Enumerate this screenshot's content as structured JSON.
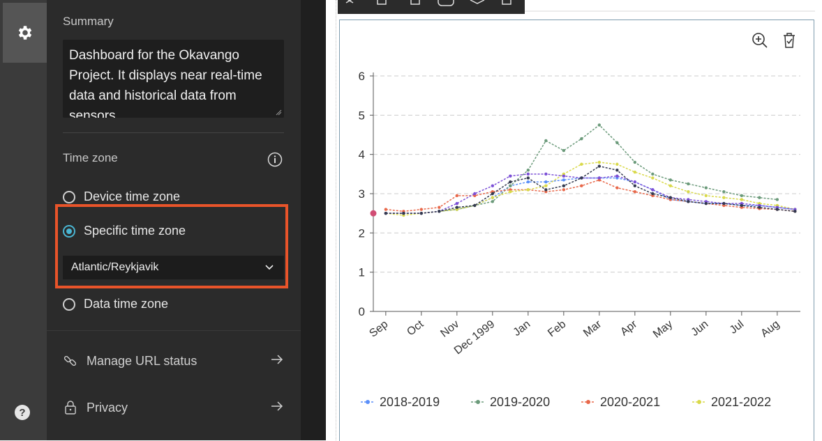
{
  "sidebar": {
    "summary_label": "Summary",
    "summary_text": "Dashboard for the Okavango Project. It displays near real-time data and historical data from sensors",
    "timezone_label": "Time zone",
    "options": [
      {
        "label": "Device time zone",
        "selected": false
      },
      {
        "label": "Specific time zone",
        "selected": true
      },
      {
        "label": "Data time zone",
        "selected": false
      }
    ],
    "timezone_value": "Atlantic/Reykjavik",
    "manage_url_label": "Manage URL status",
    "privacy_label": "Privacy"
  },
  "icons": {
    "settings": "gear-icon",
    "help": "question-circle-icon",
    "info": "info-icon",
    "zoom": "zoom-in-icon",
    "clear": "clear-selection-icon"
  },
  "colors": {
    "accent": "#4ab6d3",
    "highlight": "#e9542a",
    "panel": "#2b2b2b"
  },
  "chart_data": {
    "type": "line",
    "categories": [
      "Sep",
      "Oct",
      "Nov",
      "Dec 1999",
      "Jan",
      "Feb",
      "Mar",
      "Apr",
      "May",
      "Jun",
      "Jul",
      "Aug"
    ],
    "ylim": [
      0,
      6
    ],
    "yticks": [
      0,
      1,
      2,
      3,
      4,
      5,
      6
    ],
    "grid": true,
    "legend_position": "bottom",
    "series": [
      {
        "name": "2018-2019",
        "color": "#5b8ff9",
        "x": [
          0,
          0.5,
          1,
          1.5,
          2,
          2.5,
          3,
          3.5,
          4,
          4.5,
          5,
          5.5,
          6,
          6.5,
          7,
          7.5,
          8,
          8.5,
          9,
          9.5,
          10,
          10.5,
          11,
          11.5
        ],
        "values": [
          2.5,
          2.5,
          2.5,
          2.55,
          2.6,
          2.7,
          2.9,
          3.2,
          3.3,
          3.3,
          3.35,
          3.4,
          3.4,
          3.4,
          3.3,
          3.1,
          2.85,
          2.8,
          2.75,
          2.75,
          2.7,
          2.7,
          2.65,
          2.6
        ]
      },
      {
        "name": "2019-2020",
        "color": "#6b9a7a",
        "x": [
          1.5,
          2,
          2.5,
          3,
          3.5,
          4,
          4.5,
          5,
          5.5,
          6,
          6.5,
          7,
          7.5,
          8,
          8.5,
          9,
          9.5,
          10,
          10.5,
          11
        ],
        "values": [
          2.55,
          2.6,
          2.7,
          2.8,
          3.2,
          3.6,
          4.35,
          4.1,
          4.4,
          4.75,
          4.3,
          3.8,
          3.5,
          3.35,
          3.25,
          3.15,
          3.05,
          2.95,
          2.9,
          2.85
        ]
      },
      {
        "name": "2020-2021",
        "color": "#e8684a",
        "x": [
          0,
          0.5,
          1,
          1.5,
          2,
          2.5,
          3,
          3.5,
          4,
          4.5,
          5,
          5.5,
          6,
          6.5,
          7,
          7.5,
          8,
          8.5,
          9,
          9.5,
          10,
          10.5,
          11,
          11.5
        ],
        "values": [
          2.6,
          2.55,
          2.6,
          2.65,
          2.95,
          2.95,
          3.05,
          3.1,
          3.1,
          3.05,
          3.1,
          3.2,
          3.35,
          3.15,
          3.05,
          2.95,
          2.85,
          2.8,
          2.75,
          2.7,
          2.65,
          2.62,
          2.6,
          2.55
        ]
      },
      {
        "name": "2021-2022",
        "color": "#d9d94a",
        "x": [
          0,
          0.5,
          1,
          1.5,
          2,
          2.5,
          3,
          3.5,
          4,
          4.5,
          5,
          5.5,
          6,
          6.5,
          7,
          7.5,
          8,
          8.5,
          9,
          9.5,
          10,
          10.5,
          11,
          11.5
        ],
        "values": [
          2.5,
          2.45,
          2.5,
          2.55,
          2.6,
          2.7,
          2.9,
          3.05,
          3.1,
          3.2,
          3.5,
          3.75,
          3.8,
          3.75,
          3.55,
          3.4,
          3.2,
          3.05,
          2.95,
          2.9,
          2.85,
          2.75,
          2.7,
          2.6
        ]
      }
    ],
    "extra_series": [
      {
        "color": "#7b4fd6",
        "x": [
          0,
          0.5,
          1,
          1.5,
          2,
          2.5,
          3,
          3.5,
          4,
          4.5,
          5,
          5.5,
          6,
          6.5,
          7,
          7.5,
          8,
          8.5,
          9,
          9.5,
          10,
          10.5,
          11,
          11.5
        ],
        "values": [
          2.5,
          2.5,
          2.5,
          2.55,
          2.75,
          3.0,
          3.2,
          3.45,
          3.5,
          3.5,
          3.45,
          3.4,
          3.4,
          3.45,
          3.3,
          3.1,
          2.9,
          2.85,
          2.8,
          2.75,
          2.75,
          2.7,
          2.65,
          2.6
        ]
      },
      {
        "color": "#333a4f",
        "x": [
          0,
          0.5,
          1,
          1.5,
          2,
          2.5,
          3,
          3.5,
          4,
          4.5,
          5,
          5.5,
          6,
          6.5,
          7,
          7.5,
          8,
          8.5,
          9,
          9.5,
          10,
          10.5,
          11,
          11.5
        ],
        "values": [
          2.5,
          2.5,
          2.5,
          2.55,
          2.65,
          2.7,
          3.0,
          3.3,
          3.4,
          3.1,
          3.2,
          3.4,
          3.7,
          3.6,
          3.2,
          3.0,
          2.9,
          2.8,
          2.75,
          2.75,
          2.7,
          2.65,
          2.6,
          2.55
        ]
      }
    ]
  }
}
